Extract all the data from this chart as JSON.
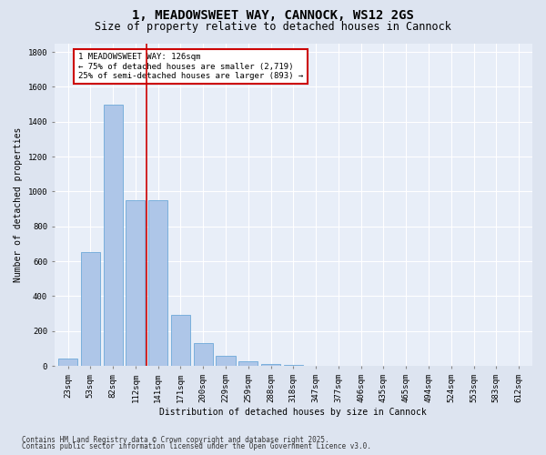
{
  "title": "1, MEADOWSWEET WAY, CANNOCK, WS12 2GS",
  "subtitle": "Size of property relative to detached houses in Cannock",
  "xlabel": "Distribution of detached houses by size in Cannock",
  "ylabel": "Number of detached properties",
  "categories": [
    "23sqm",
    "53sqm",
    "82sqm",
    "112sqm",
    "141sqm",
    "171sqm",
    "200sqm",
    "229sqm",
    "259sqm",
    "288sqm",
    "318sqm",
    "347sqm",
    "377sqm",
    "406sqm",
    "435sqm",
    "465sqm",
    "494sqm",
    "524sqm",
    "553sqm",
    "583sqm",
    "612sqm"
  ],
  "values": [
    40,
    650,
    1500,
    950,
    950,
    295,
    130,
    60,
    25,
    10,
    5,
    2,
    1,
    0,
    0,
    0,
    0,
    0,
    0,
    0,
    0
  ],
  "bar_color": "#aec6e8",
  "bar_edge_color": "#5a9fd4",
  "vline_x": 3.5,
  "vline_color": "#cc0000",
  "annotation_text": "1 MEADOWSWEET WAY: 126sqm\n← 75% of detached houses are smaller (2,719)\n25% of semi-detached houses are larger (893) →",
  "annotation_box_color": "#cc0000",
  "ylim": [
    0,
    1850
  ],
  "yticks": [
    0,
    200,
    400,
    600,
    800,
    1000,
    1200,
    1400,
    1600,
    1800
  ],
  "background_color": "#dde4f0",
  "plot_bg_color": "#e8eef8",
  "grid_color": "#ffffff",
  "title_fontsize": 10,
  "subtitle_fontsize": 8.5,
  "label_fontsize": 7,
  "tick_fontsize": 6.5,
  "annot_fontsize": 6.5,
  "footnote1": "Contains HM Land Registry data © Crown copyright and database right 2025.",
  "footnote2": "Contains public sector information licensed under the Open Government Licence v3.0."
}
